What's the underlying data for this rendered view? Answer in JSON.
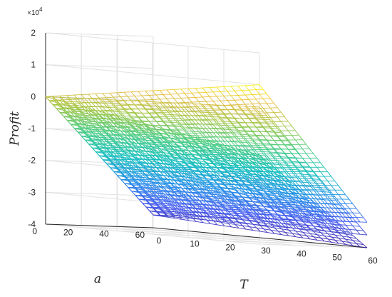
{
  "chart_data": {
    "type": "surface",
    "title": "",
    "xlabel": "T",
    "ylabel": "a",
    "zlabel": "Profit",
    "z_exponent_prefix": "×10",
    "z_exponent": "4",
    "xlim": [
      0,
      60
    ],
    "ylim": [
      0,
      60
    ],
    "zlim": [
      -4,
      2
    ],
    "x_ticks": [
      "0",
      "10",
      "20",
      "30",
      "40",
      "50",
      "60"
    ],
    "y_ticks": [
      "0",
      "20",
      "40",
      "60"
    ],
    "z_ticks": [
      "-4",
      "-3",
      "-2",
      "-1",
      "0",
      "1",
      "2"
    ],
    "grid": true,
    "colormap": "parula",
    "surfaces": [
      {
        "corners": {
          "T0_a0": 0.0,
          "T60_a0": 1.0,
          "T0_a60": -3.6,
          "T60_a60": -3.2
        }
      },
      {
        "corners": {
          "T0_a0": 0.0,
          "T60_a0": 0.3,
          "T0_a60": -3.6,
          "T60_a60": -3.6
        }
      },
      {
        "corners": {
          "T0_a0": 0.0,
          "T60_a0": -1.2,
          "T0_a60": -3.6,
          "T60_a60": -4.0
        }
      }
    ]
  }
}
